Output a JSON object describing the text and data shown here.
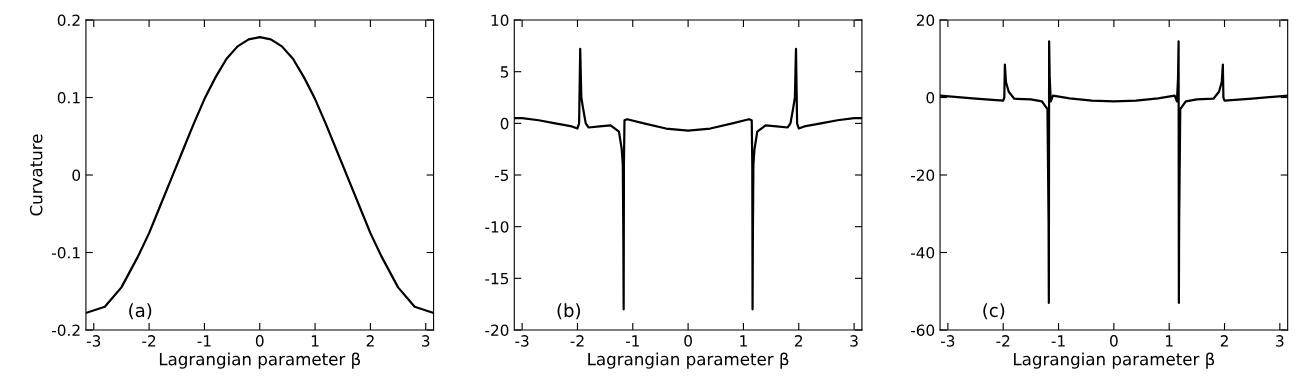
{
  "chart_data": [
    {
      "type": "line",
      "xlabel": "Lagrangian parameter β",
      "ylabel": "Curvature",
      "annotations": [
        "(a)"
      ],
      "xlim": [
        -3.1416,
        3.1416
      ],
      "xticks": [
        -3,
        -2,
        -1,
        0,
        1,
        2,
        3
      ],
      "ylim": [
        -0.2,
        0.2
      ],
      "yticks": [
        -0.2,
        -0.1,
        0,
        0.1,
        0.2
      ],
      "grid": false,
      "legend": false,
      "series": [
        {
          "color": "#000000",
          "x": [
            -3.1416,
            -2.8,
            -2.5,
            -2.2,
            -2.0,
            -1.8,
            -1.6,
            -1.4,
            -1.2,
            -1.0,
            -0.8,
            -0.6,
            -0.4,
            -0.2,
            0,
            0.2,
            0.4,
            0.6,
            0.8,
            1.0,
            1.2,
            1.4,
            1.6,
            1.8,
            2.0,
            2.2,
            2.5,
            2.8,
            3.1416
          ],
          "values": [
            -0.178,
            -0.17,
            -0.145,
            -0.105,
            -0.075,
            -0.04,
            -0.005,
            0.03,
            0.065,
            0.098,
            0.126,
            0.15,
            0.166,
            0.175,
            0.178,
            0.175,
            0.166,
            0.15,
            0.126,
            0.098,
            0.065,
            0.03,
            -0.005,
            -0.04,
            -0.075,
            -0.105,
            -0.145,
            -0.17,
            -0.178
          ]
        }
      ]
    },
    {
      "type": "line",
      "xlabel": "Lagrangian parameter β",
      "annotations": [
        "(b)"
      ],
      "xlim": [
        -3.1416,
        3.1416
      ],
      "xticks": [
        -3,
        -2,
        -1,
        0,
        1,
        2,
        3
      ],
      "ylim": [
        -20,
        10
      ],
      "yticks": [
        -20,
        -15,
        -10,
        -5,
        0,
        5,
        10
      ],
      "grid": false,
      "legend": false,
      "series": [
        {
          "color": "#000000",
          "x": [
            -3.1416,
            -3.0,
            -2.7,
            -2.4,
            -2.1,
            -2.0,
            -1.97,
            -1.95,
            -1.93,
            -1.9,
            -1.85,
            -1.8,
            -1.6,
            -1.4,
            -1.25,
            -1.2,
            -1.18,
            -1.17,
            -1.165,
            -1.16,
            -1.15,
            -1.1,
            -0.8,
            -0.4,
            0,
            0.4,
            0.8,
            1.1,
            1.15,
            1.16,
            1.165,
            1.17,
            1.18,
            1.2,
            1.25,
            1.4,
            1.6,
            1.8,
            1.85,
            1.9,
            1.93,
            1.95,
            1.97,
            2.0,
            2.1,
            2.4,
            2.7,
            3.0,
            3.1416
          ],
          "values": [
            0.5,
            0.5,
            0.3,
            0.0,
            -0.3,
            -0.5,
            0.0,
            7.2,
            2.5,
            1.5,
            0.0,
            -0.4,
            -0.3,
            -0.2,
            -0.8,
            -2.5,
            -4,
            -11.5,
            -18,
            -4,
            0.3,
            0.4,
            0.0,
            -0.5,
            -0.7,
            -0.5,
            0.0,
            0.4,
            0.3,
            -4,
            -18,
            -11.5,
            -4,
            -2.5,
            -0.8,
            -0.2,
            -0.3,
            -0.4,
            0.0,
            1.5,
            2.5,
            7.2,
            0.0,
            -0.5,
            -0.3,
            0.0,
            0.3,
            0.5,
            0.5
          ]
        }
      ]
    },
    {
      "type": "line",
      "xlabel": "Lagrangian parameter β",
      "annotations": [
        "(c)"
      ],
      "xlim": [
        -3.1416,
        3.1416
      ],
      "xticks": [
        -3,
        -2,
        -1,
        0,
        1,
        2,
        3
      ],
      "ylim": [
        -60,
        20
      ],
      "yticks": [
        -60,
        -40,
        -20,
        0,
        20
      ],
      "grid": false,
      "legend": false,
      "series": [
        {
          "color": "#000000",
          "x": [
            -3.1416,
            -2.5,
            -2.0,
            -1.98,
            -1.97,
            -1.95,
            -1.9,
            -1.8,
            -1.5,
            -1.3,
            -1.2,
            -1.18,
            -1.175,
            -1.17,
            -1.16,
            -1.14,
            -1.1,
            -0.8,
            -0.4,
            0,
            0.4,
            0.8,
            1.1,
            1.14,
            1.16,
            1.17,
            1.175,
            1.18,
            1.2,
            1.3,
            1.5,
            1.8,
            1.9,
            1.95,
            1.97,
            1.98,
            2.0,
            2.5,
            3.1416
          ],
          "values": [
            0.5,
            -0.3,
            -0.8,
            0,
            8.5,
            4,
            1.5,
            -0.3,
            -0.5,
            -1,
            -3,
            -32,
            -53,
            14.5,
            5,
            -1,
            0.5,
            -0.2,
            -0.8,
            -1,
            -0.8,
            -0.2,
            0.5,
            -1,
            5,
            14.5,
            -53,
            -32,
            -3,
            -1,
            -0.5,
            -0.3,
            1.5,
            4,
            8.5,
            0,
            -0.8,
            -0.3,
            0.5
          ]
        }
      ]
    }
  ]
}
